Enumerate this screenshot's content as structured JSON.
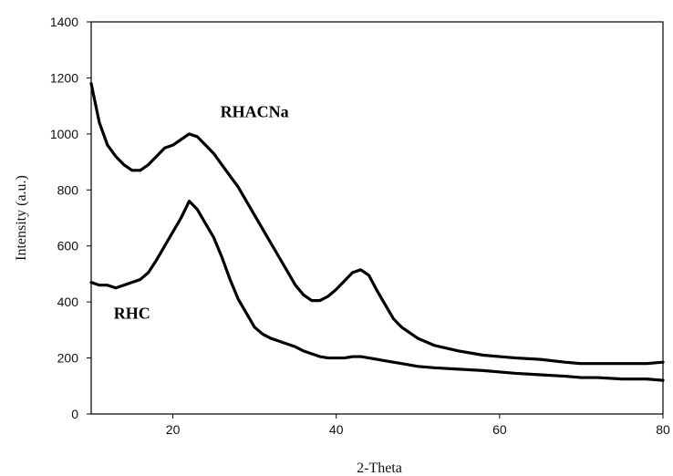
{
  "chart_data": {
    "type": "line",
    "title": "",
    "xlabel": "2-Theta",
    "ylabel": "Intensity (a.u.)",
    "xlim": [
      10,
      80
    ],
    "ylim": [
      0,
      1400
    ],
    "xticks": [
      20,
      40,
      60,
      80
    ],
    "yticks": [
      0,
      200,
      400,
      600,
      800,
      1000,
      1200,
      1400
    ],
    "grid": false,
    "legend": "none",
    "colors": {
      "line": "#000000",
      "axis": "#000000",
      "background": "#ffffff"
    },
    "series": [
      {
        "name": "RHACNa",
        "x": [
          10,
          11,
          12,
          13,
          14,
          15,
          16,
          17,
          18,
          19,
          20,
          21,
          22,
          23,
          24,
          25,
          26,
          27,
          28,
          29,
          30,
          31,
          32,
          33,
          34,
          35,
          36,
          37,
          38,
          39,
          40,
          41,
          42,
          43,
          44,
          45,
          46,
          47,
          48,
          50,
          52,
          55,
          58,
          60,
          62,
          65,
          68,
          70,
          72,
          75,
          78,
          80
        ],
        "y": [
          1180,
          1040,
          960,
          920,
          890,
          870,
          870,
          890,
          920,
          950,
          960,
          980,
          1000,
          990,
          960,
          930,
          890,
          850,
          810,
          760,
          710,
          660,
          610,
          560,
          510,
          460,
          425,
          405,
          405,
          420,
          445,
          475,
          505,
          515,
          495,
          440,
          390,
          340,
          310,
          270,
          245,
          225,
          210,
          205,
          200,
          195,
          185,
          180,
          180,
          180,
          180,
          185
        ]
      },
      {
        "name": "RHC",
        "x": [
          10,
          11,
          12,
          13,
          14,
          15,
          16,
          17,
          18,
          19,
          20,
          21,
          22,
          23,
          24,
          25,
          26,
          27,
          28,
          29,
          30,
          31,
          32,
          33,
          34,
          35,
          36,
          37,
          38,
          39,
          40,
          41,
          42,
          43,
          44,
          45,
          46,
          48,
          50,
          52,
          55,
          58,
          60,
          62,
          65,
          68,
          70,
          72,
          75,
          78,
          80
        ],
        "y": [
          470,
          460,
          460,
          450,
          460,
          470,
          480,
          505,
          550,
          600,
          650,
          700,
          760,
          730,
          680,
          630,
          560,
          480,
          410,
          360,
          310,
          285,
          270,
          260,
          250,
          240,
          225,
          215,
          205,
          200,
          200,
          200,
          205,
          205,
          200,
          195,
          190,
          180,
          170,
          165,
          160,
          155,
          150,
          145,
          140,
          135,
          130,
          130,
          125,
          125,
          120
        ]
      }
    ],
    "annotations": [
      {
        "text": "RHACNa",
        "x": 30,
        "y": 1060
      },
      {
        "text": "RHC",
        "x": 15,
        "y": 340
      }
    ]
  }
}
